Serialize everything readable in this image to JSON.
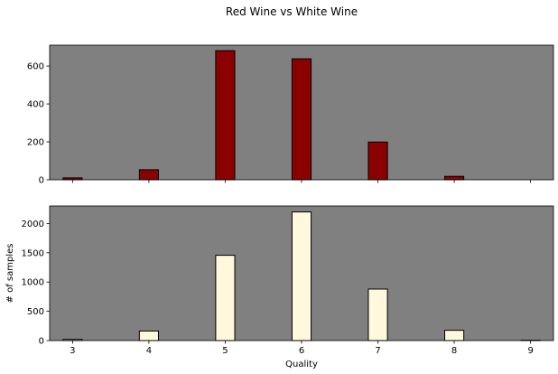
{
  "figure": {
    "title": "Red Wine vs White Wine",
    "background": "#ffffff",
    "axes_facecolor": "#808080"
  },
  "chart_data": [
    {
      "type": "bar",
      "x": [
        3,
        4,
        5,
        6,
        7,
        8
      ],
      "values": [
        10,
        53,
        681,
        638,
        199,
        18
      ],
      "xlim": [
        2.7,
        9.3
      ],
      "ylim": [
        0,
        710
      ],
      "yticks": [
        0,
        200,
        400,
        600
      ],
      "xticks": [
        3,
        4,
        5,
        6,
        7,
        8,
        9
      ],
      "xtick_labels_visible": false,
      "color": "#8b0000",
      "edgecolor": "#000000",
      "xlabel": "",
      "ylabel": ""
    },
    {
      "type": "bar",
      "x": [
        3,
        4,
        5,
        6,
        7,
        8,
        9
      ],
      "values": [
        20,
        163,
        1457,
        2198,
        880,
        175,
        5
      ],
      "xlim": [
        2.7,
        9.3
      ],
      "ylim": [
        0,
        2300
      ],
      "yticks": [
        0,
        500,
        1000,
        1500,
        2000
      ],
      "xticks": [
        3,
        4,
        5,
        6,
        7,
        8,
        9
      ],
      "xtick_labels_visible": true,
      "color": "#fff8dc",
      "edgecolor": "#000000",
      "xlabel": "Quality",
      "ylabel": "# of samples"
    }
  ]
}
